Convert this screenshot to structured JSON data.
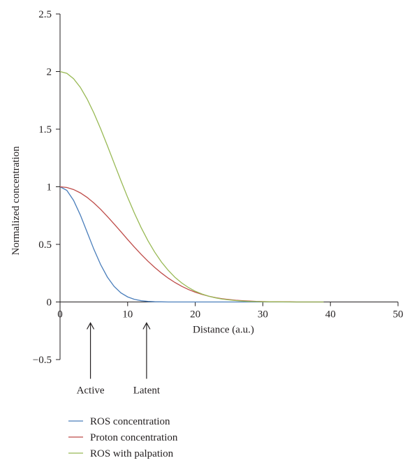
{
  "chart_data": {
    "type": "line",
    "title": "",
    "xlabel": "Distance (a.u.)",
    "ylabel": "Normalized concentration",
    "xlim": [
      0,
      50
    ],
    "ylim": [
      -0.5,
      2.5
    ],
    "x_ticks": [
      {
        "value": 0,
        "label": "0"
      },
      {
        "value": 10,
        "label": "10"
      },
      {
        "value": 20,
        "label": "20"
      },
      {
        "value": 30,
        "label": "30"
      },
      {
        "value": 40,
        "label": "40"
      },
      {
        "value": 50,
        "label": "50"
      }
    ],
    "y_ticks": [
      {
        "value": -0.5,
        "label": "−0.5"
      },
      {
        "value": 0,
        "label": "0"
      },
      {
        "value": 0.5,
        "label": "0.5"
      },
      {
        "value": 1,
        "label": "1"
      },
      {
        "value": 1.5,
        "label": "1.5"
      },
      {
        "value": 2,
        "label": "2"
      },
      {
        "value": 2.5,
        "label": "2.5"
      }
    ],
    "grid": false,
    "legend_position": "bottom-left",
    "series": [
      {
        "name": "ROS concentration",
        "color": "#4a7ebb",
        "x": [
          0,
          1,
          2,
          3,
          4,
          5,
          6,
          7,
          8,
          9,
          10,
          11,
          12,
          13,
          14,
          15,
          16,
          17,
          18,
          19,
          20,
          25,
          30,
          35,
          39
        ],
        "y": [
          1.0,
          0.969,
          0.882,
          0.755,
          0.607,
          0.458,
          0.325,
          0.216,
          0.135,
          0.079,
          0.044,
          0.023,
          0.011,
          0.005,
          0.002,
          0.001,
          0.0,
          0.0,
          0.0,
          0.0,
          0.0,
          0.0,
          0.0,
          0.0,
          0.0
        ]
      },
      {
        "name": "Proton concentration",
        "color": "#be4b48",
        "x": [
          0,
          1,
          2,
          3,
          4,
          5,
          6,
          7,
          8,
          9,
          10,
          11,
          12,
          13,
          14,
          15,
          16,
          17,
          18,
          19,
          20,
          21,
          22,
          23,
          24,
          25,
          26,
          27,
          28,
          29,
          30,
          31,
          32,
          33,
          34,
          35,
          36,
          37,
          38,
          39
        ],
        "y": [
          1.0,
          0.994,
          0.976,
          0.947,
          0.908,
          0.86,
          0.804,
          0.742,
          0.677,
          0.61,
          0.542,
          0.476,
          0.413,
          0.354,
          0.3,
          0.251,
          0.207,
          0.169,
          0.136,
          0.108,
          0.085,
          0.066,
          0.05,
          0.038,
          0.028,
          0.021,
          0.015,
          0.011,
          0.008,
          0.005,
          0.004,
          0.002,
          0.002,
          0.001,
          0.001,
          0.0,
          0.0,
          0.0,
          0.0,
          0.0
        ]
      },
      {
        "name": "ROS with palpation",
        "color": "#98b954",
        "x": [
          0,
          1,
          2,
          3,
          4,
          5,
          6,
          7,
          8,
          9,
          10,
          11,
          12,
          13,
          14,
          15,
          16,
          17,
          18,
          19,
          20,
          21,
          22,
          23,
          24,
          25,
          26,
          27,
          28,
          29,
          30,
          35,
          39
        ],
        "y": [
          2.0,
          1.985,
          1.938,
          1.863,
          1.762,
          1.641,
          1.504,
          1.357,
          1.205,
          1.054,
          0.908,
          0.771,
          0.645,
          0.532,
          0.433,
          0.347,
          0.275,
          0.214,
          0.165,
          0.125,
          0.093,
          0.069,
          0.05,
          0.036,
          0.025,
          0.018,
          0.012,
          0.008,
          0.005,
          0.004,
          0.002,
          0.0,
          0.0
        ]
      }
    ],
    "annotations": [
      {
        "label": "Active",
        "x": 4.5
      },
      {
        "label": "Latent",
        "x": 12.8
      }
    ]
  }
}
